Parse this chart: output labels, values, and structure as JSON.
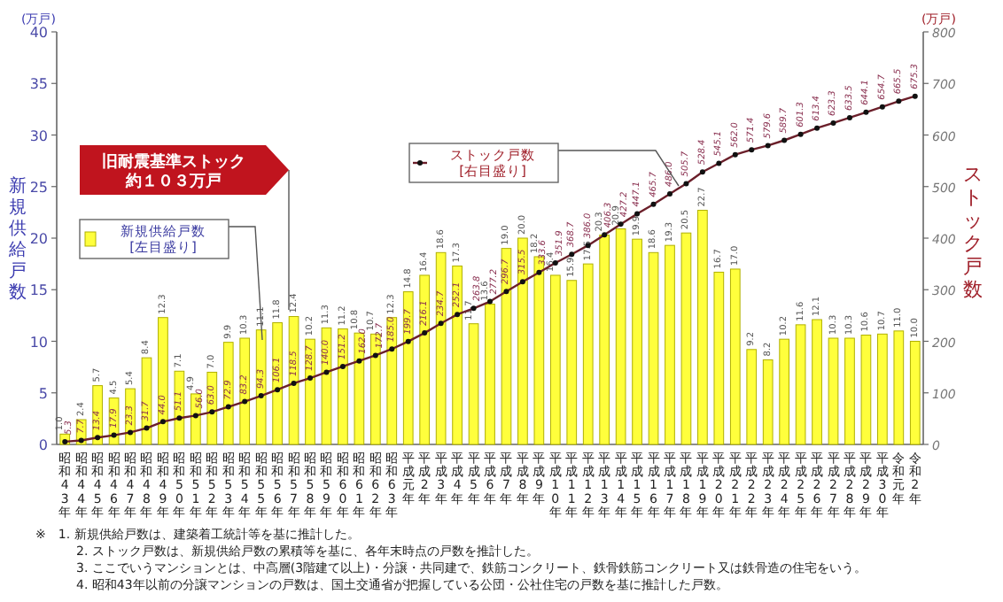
{
  "chart_data": {
    "type": "bar",
    "categories": [
      "昭和43年",
      "昭和44年",
      "昭和45年",
      "昭和46年",
      "昭和47年",
      "昭和48年",
      "昭和49年",
      "昭和50年",
      "昭和51年",
      "昭和52年",
      "昭和53年",
      "昭和54年",
      "昭和55年",
      "昭和56年",
      "昭和57年",
      "昭和58年",
      "昭和59年",
      "昭和60年",
      "昭和61年",
      "昭和62年",
      "昭和63年",
      "平成元年",
      "平成2年",
      "平成3年",
      "平成4年",
      "平成5年",
      "平成6年",
      "平成7年",
      "平成8年",
      "平成9年",
      "平成10年",
      "平成11年",
      "平成12年",
      "平成13年",
      "平成14年",
      "平成15年",
      "平成16年",
      "平成17年",
      "平成18年",
      "平成19年",
      "平成20年",
      "平成21年",
      "平成22年",
      "平成23年",
      "平成24年",
      "平成25年",
      "平成26年",
      "平成27年",
      "平成28年",
      "平成29年",
      "平成30年",
      "令和元年",
      "令和2年"
    ],
    "series": [
      {
        "name": "新規供給戸数 [左目盛り]",
        "color": "#ffff3c",
        "values": [
          1.0,
          2.4,
          5.7,
          4.5,
          5.4,
          8.4,
          12.3,
          7.1,
          4.9,
          7.0,
          9.9,
          10.3,
          11.1,
          11.8,
          12.4,
          10.2,
          11.3,
          11.2,
          10.8,
          10.7,
          12.3,
          14.8,
          16.4,
          18.6,
          17.3,
          11.7,
          13.6,
          19.0,
          20.0,
          18.2,
          16.4,
          15.9,
          17.5,
          20.3,
          20.9,
          19.9,
          18.6,
          19.3,
          20.5,
          22.7,
          16.7,
          17.0,
          9.2,
          8.2,
          10.2,
          11.6,
          12.1,
          10.3,
          10.3,
          10.6,
          10.7,
          11.0,
          10.0
        ],
        "value_labels": [
          "1.0",
          "2.4",
          "5.7",
          "4.5",
          "5.4",
          "8.4",
          "12.3",
          "7.1",
          "4.9",
          "7.0",
          "9.9",
          "10.3",
          "11.1",
          "11.8",
          "12.4",
          "10.2",
          "11.3",
          "11.2",
          "10.8",
          "10.7",
          "12.3",
          "14.8",
          "16.4",
          "18.6",
          "17.3",
          "11.7",
          "13.6",
          "19.0",
          "20.0",
          "18.2",
          "16.4",
          "15.9",
          "17.5",
          "20.3",
          "20.9",
          "19.9",
          "18.6",
          "19.3",
          "20.5",
          "22.7",
          "16.7",
          "17.0",
          "9.2",
          "8.2",
          "10.2",
          "11.6",
          "12.1",
          "10.3",
          "10.3",
          "10.6",
          "10.7",
          "11.0",
          "10.0"
        ]
      },
      {
        "name": "ストック戸数 [右目盛り]",
        "type": "line",
        "axis": "y2",
        "color": "#6b1f2a",
        "marker": "circle",
        "values": [
          5.3,
          7.7,
          13.4,
          17.9,
          23.3,
          31.7,
          44.0,
          51.1,
          56.0,
          63.0,
          72.9,
          83.2,
          94.3,
          106.1,
          118.5,
          128.7,
          140.0,
          151.2,
          162.0,
          172.7,
          185.0,
          199.7,
          216.1,
          234.7,
          252.1,
          263.8,
          277.2,
          296.7,
          315.5,
          333.6,
          351.9,
          368.7,
          386.0,
          406.3,
          427.2,
          447.1,
          465.7,
          486.0,
          505.7,
          528.4,
          545.1,
          562.0,
          571.4,
          579.6,
          589.7,
          601.3,
          613.4,
          623.3,
          633.5,
          644.1,
          654.7,
          665.5,
          675.3
        ],
        "value_labels": [
          "5.3",
          "7.7",
          "13.4",
          "17.9",
          "23.3",
          "31.7",
          "44.0",
          "51.1",
          "56.0",
          "63.0",
          "72.9",
          "83.2",
          "94.3",
          "106.1",
          "118.5",
          "128.7",
          "140.0",
          "151.2",
          "162.0",
          "172.7",
          "185.0",
          "199.7",
          "216.1",
          "234.7",
          "252.1",
          "263.8",
          "277.2",
          "296.7",
          "315.5",
          "333.6",
          "351.9",
          "368.7",
          "386.0",
          "406.3",
          "427.2",
          "447.1",
          "465.7",
          "486.0",
          "505.7",
          "528.4",
          "545.1",
          "562.0",
          "571.4",
          "579.6",
          "589.7",
          "601.3",
          "613.4",
          "623.3",
          "633.5",
          "644.1",
          "654.7",
          "665.5",
          "675.3"
        ]
      }
    ],
    "ylabel": "新規供給戸数",
    "y2label": "ストック戸数",
    "ylim": [
      0,
      40
    ],
    "yticks": [
      0,
      5,
      10,
      15,
      20,
      25,
      30,
      35,
      40
    ],
    "y2lim": [
      0,
      800
    ],
    "y2ticks": [
      0,
      100,
      200,
      300,
      400,
      500,
      600,
      700,
      800
    ],
    "legend": "top left",
    "grid": false,
    "annotations": [
      "旧耐震基準ストック",
      "約１０３万戸",
      "(万戸)",
      "(万戸)",
      "※　1. 新規供給戸数は、建築着工統計等を基に推計した。",
      "2. ストック戸数は、新規供給戸数の累積等を基に、各年末時点の戸数を推計した。",
      "3. ここでいうマンションとは、中高層(3階建て以上)・分譲・共同建で、鉄筋コンクリート、鉄骨鉄筋コンクリート又は鉄骨造の住宅をいう。",
      "4. 昭和43年以前の分譲マンションの戸数は、国土交通省が把握している公団・公社住宅の戸数を基に推計した戸数。"
    ]
  }
}
